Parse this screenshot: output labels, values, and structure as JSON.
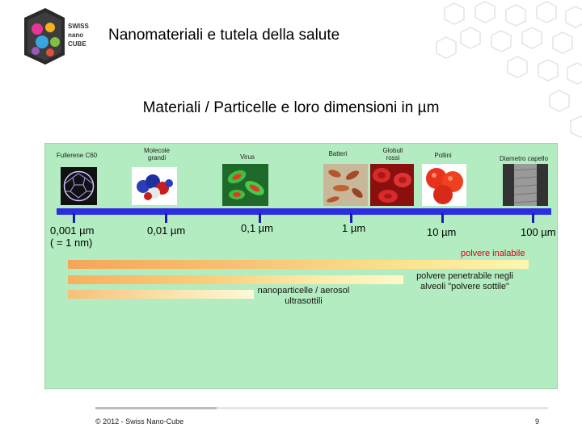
{
  "header": {
    "logo_lines": [
      "SWISS",
      "nano",
      "CUBE"
    ],
    "title": "Nanomateriali e tutela della salute"
  },
  "subtitle": "Materiali / Particelle e loro dimensioni in µm",
  "items": [
    {
      "label": "Fullerene C60",
      "size": "0,001 µm",
      "size_note": "( = 1 nm)"
    },
    {
      "label": "Molecole grandi",
      "size": "0,01 µm"
    },
    {
      "label": "Virus",
      "size": "0,1 µm"
    },
    {
      "label": "Batteri",
      "size": "1 µm"
    },
    {
      "label": "Globuli rossi"
    },
    {
      "label": "Pollini",
      "size": "10 µm"
    },
    {
      "label": "Diametro capello",
      "size": "100 µm"
    }
  ],
  "ranges": {
    "inhalable": "polvere inalabile",
    "fine_dust": "polvere penetrabile negli alveoli \"polvere sottile\"",
    "nano": "nanoparticelle / aerosol ultrasottili"
  },
  "colors": {
    "panel_bg": "#b3ecc0",
    "axis": "#2d2de0",
    "highlight_red": "#e0001b"
  },
  "footer": {
    "copyright": "© 2012 - Swiss Nano-Cube",
    "page": "9"
  }
}
